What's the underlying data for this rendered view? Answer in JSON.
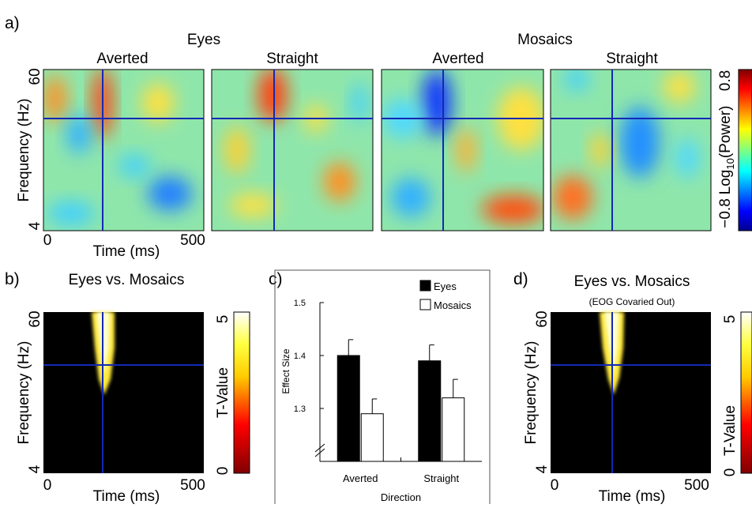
{
  "panel_a": {
    "label": "a)",
    "group_titles": [
      "Eyes",
      "Mosaics"
    ],
    "conditions": [
      "Averted",
      "Straight",
      "Averted",
      "Straight"
    ],
    "y_label": "Frequency (Hz)",
    "y_ticks": [
      60,
      4
    ],
    "x_label": "Time (ms)",
    "x_ticks": [
      0,
      500
    ],
    "colorbar": {
      "label": "Log",
      "label_sub": "10",
      "label_rest": "(Power)",
      "ticks": [
        0.8,
        {
          "value": -0.8,
          "label": "−0.8"
        }
      ]
    }
  },
  "panel_b": {
    "label": "b)",
    "title": "Eyes vs. Mosaics",
    "y_label": "Frequency (Hz)",
    "y_ticks": [
      60,
      4
    ],
    "x_label": "Time (ms)",
    "x_ticks": [
      0,
      500
    ],
    "colorbar": {
      "label": "T-Value",
      "ticks": [
        5,
        0
      ]
    }
  },
  "chart_data": {
    "type": "bar",
    "label": "c)",
    "categories": [
      "Averted",
      "Straight"
    ],
    "x_label": "Direction",
    "y_label": "Effect Size",
    "series": [
      {
        "name": "Eyes",
        "color": "#000000",
        "values": [
          1.4,
          1.39
        ],
        "errors": [
          0.03,
          0.03
        ]
      },
      {
        "name": "Mosaics",
        "color": "#ffffff",
        "values": [
          1.29,
          1.32
        ],
        "errors": [
          0.028,
          0.035
        ]
      }
    ],
    "ylim": [
      1.2,
      1.5
    ],
    "yticks": [
      1.3,
      1.4,
      1.5
    ]
  },
  "panel_d": {
    "label": "d)",
    "title": "Eyes vs. Mosaics",
    "subtitle": "(EOG Covaried Out)",
    "y_label": "Frequency (Hz)",
    "y_ticks": [
      60,
      4
    ],
    "x_label": "Time (ms)",
    "x_ticks": [
      500,
      0
    ],
    "colorbar": {
      "label": "T-Value",
      "ticks": [
        5,
        0
      ]
    }
  }
}
